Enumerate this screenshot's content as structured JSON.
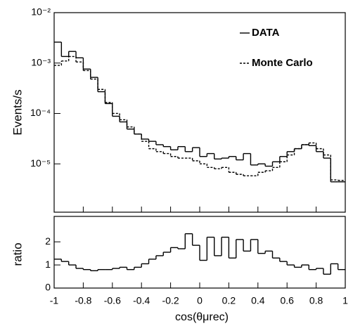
{
  "chart_data": [
    {
      "type": "histogram",
      "ylabel": "Events/s",
      "log_y": true,
      "bins": [
        -1,
        -0.95,
        -0.9,
        -0.85,
        -0.8,
        -0.75,
        -0.7,
        -0.65,
        -0.6,
        -0.55,
        -0.5,
        -0.45,
        -0.4,
        -0.35,
        -0.3,
        -0.25,
        -0.2,
        -0.15,
        -0.1,
        -0.05,
        0,
        0.05,
        0.1,
        0.15,
        0.2,
        0.25,
        0.3,
        0.35,
        0.4,
        0.45,
        0.5,
        0.55,
        0.6,
        0.65,
        0.7,
        0.75,
        0.8,
        0.85,
        0.9,
        0.95,
        1
      ],
      "xlim": [
        -1,
        1
      ],
      "xticks": [
        -1,
        -0.8,
        -0.6,
        -0.4,
        -0.2,
        0,
        0.2,
        0.4,
        0.6,
        0.8,
        1
      ],
      "ylim": [
        1.1e-06,
        0.01
      ],
      "yticks": [
        {
          "value": 1e-05,
          "label": "10⁻⁵"
        },
        {
          "value": 0.0001,
          "label": "10⁻⁴"
        },
        {
          "value": 0.001,
          "label": "10⁻³"
        },
        {
          "value": 0.01,
          "label": "10⁻²"
        }
      ],
      "legend": "upper right",
      "series": [
        {
          "name": "DATA",
          "color": "#000000",
          "line_style": "solid",
          "values": [
            0.0026,
            0.00135,
            0.0017,
            0.00127,
            0.00076,
            0.00052,
            0.00027,
            0.000157,
            8.8e-05,
            6.8e-05,
            4.9e-05,
            3.9e-05,
            3.1e-05,
            2.8e-05,
            2.4e-05,
            2.2e-05,
            1.9e-05,
            2.2e-05,
            1.75e-05,
            2.1e-05,
            1.4e-05,
            1.6e-05,
            1.25e-05,
            1.3e-05,
            1.4e-05,
            1.2e-05,
            1.6e-05,
            9.5e-06,
            1e-05,
            9e-06,
            1.1e-05,
            1.4e-05,
            1.75e-05,
            2e-05,
            2.4e-05,
            2.3e-05,
            1.75e-05,
            1.3e-05,
            4.4e-06,
            4.4e-06
          ]
        },
        {
          "name": "Monte Carlo",
          "color": "#000000",
          "line_style": "dashed",
          "values": [
            0.0009,
            0.0011,
            0.00135,
            0.00105,
            0.00071,
            0.00048,
            0.0003,
            0.000165,
            0.0001,
            7.5e-05,
            5.4e-05,
            3.9e-05,
            2.8e-05,
            2e-05,
            1.75e-05,
            1.6e-05,
            1.4e-05,
            1.3e-05,
            1.3e-05,
            1.15e-05,
            1e-05,
            8.5e-06,
            8e-06,
            8.5e-06,
            6.8e-06,
            6.2e-06,
            5.8e-06,
            5.8e-06,
            6.8e-06,
            7.3e-06,
            8.5e-06,
            1.1e-05,
            1.5e-05,
            2e-05,
            2.4e-05,
            2.6e-05,
            2e-05,
            1.5e-05,
            4.8e-06,
            4.7e-06
          ]
        }
      ]
    },
    {
      "type": "histogram",
      "ylabel": "ratio",
      "xlabel": "cos(θμrec)",
      "bins": [
        -1,
        -0.95,
        -0.9,
        -0.85,
        -0.8,
        -0.75,
        -0.7,
        -0.65,
        -0.6,
        -0.55,
        -0.5,
        -0.45,
        -0.4,
        -0.35,
        -0.3,
        -0.25,
        -0.2,
        -0.15,
        -0.1,
        -0.05,
        0,
        0.05,
        0.1,
        0.15,
        0.2,
        0.25,
        0.3,
        0.35,
        0.4,
        0.45,
        0.5,
        0.55,
        0.6,
        0.65,
        0.7,
        0.75,
        0.8,
        0.85,
        0.9,
        0.95,
        1
      ],
      "xlim": [
        -1,
        1
      ],
      "xticks": [
        -1,
        -0.8,
        -0.6,
        -0.4,
        -0.2,
        0,
        0.2,
        0.4,
        0.6,
        0.8,
        1
      ],
      "ylim": [
        0,
        3.1
      ],
      "yticks": [
        0,
        1,
        2
      ],
      "color": "#000000",
      "values": [
        1.25,
        1.15,
        1.0,
        0.85,
        0.8,
        0.75,
        0.8,
        0.8,
        0.85,
        0.9,
        0.8,
        0.9,
        1.05,
        1.25,
        1.4,
        1.55,
        1.75,
        1.7,
        2.35,
        1.85,
        1.2,
        2.2,
        1.4,
        2.2,
        1.3,
        2.1,
        1.6,
        2.1,
        1.5,
        1.6,
        1.3,
        1.15,
        1.0,
        0.9,
        1.0,
        0.8,
        0.85,
        0.6,
        1.05,
        0.8
      ]
    }
  ]
}
